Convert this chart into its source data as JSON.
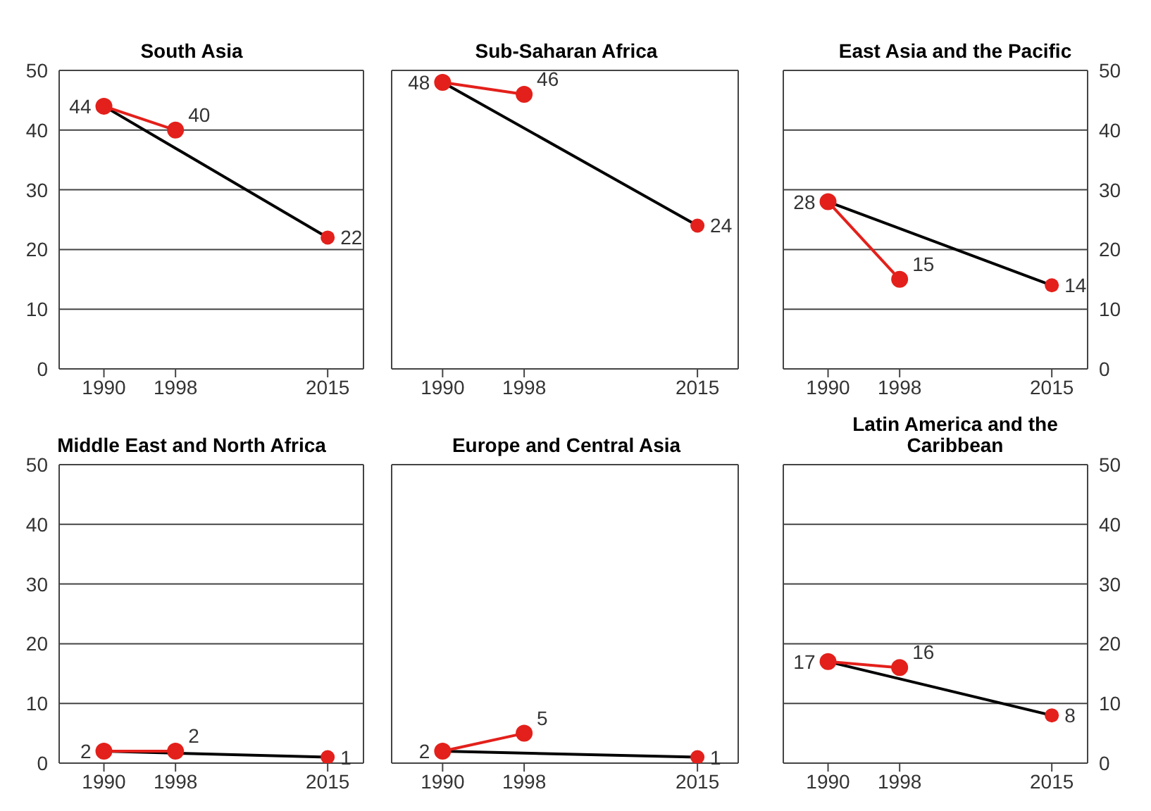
{
  "chart_data": [
    {
      "type": "line",
      "title": "South Asia",
      "xlim": [
        1985,
        2019
      ],
      "xticks": [
        1990,
        1998,
        2015
      ],
      "ylim": [
        0,
        50
      ],
      "yticks": [
        0,
        10,
        20,
        30,
        40,
        50
      ],
      "grid": "y",
      "series": [
        {
          "type": "line",
          "color": "#000000",
          "marker": "none",
          "x": [
            1990,
            2015
          ],
          "values": [
            44,
            22
          ],
          "value_labels": [
            null,
            null
          ]
        },
        {
          "type": "line",
          "color": "#e3201b",
          "marker": "circle",
          "x": [
            1990,
            1998
          ],
          "values": [
            44,
            40
          ],
          "value_labels": [
            "44",
            "40"
          ]
        },
        {
          "type": "scatter",
          "color": "#e3201b",
          "marker": "circle",
          "x": [
            2015
          ],
          "values": [
            22
          ],
          "value_labels": [
            "22"
          ]
        }
      ]
    },
    {
      "type": "line",
      "title": "Sub-Saharan Africa",
      "xlim": [
        1985,
        2019
      ],
      "xticks": [
        1990,
        1998,
        2015
      ],
      "ylim": [
        0,
        50
      ],
      "yticks": [
        0,
        10,
        20,
        30,
        40,
        50
      ],
      "grid": "y",
      "tick_labels": "x",
      "series": [
        {
          "type": "line",
          "color": "#000000",
          "marker": "none",
          "x": [
            1990,
            2015
          ],
          "values": [
            48,
            24
          ],
          "value_labels": [
            null,
            null
          ]
        },
        {
          "type": "line",
          "color": "#e3201b",
          "marker": "circle",
          "x": [
            1990,
            1998
          ],
          "values": [
            48,
            46
          ],
          "value_labels": [
            "48",
            "46"
          ]
        },
        {
          "type": "scatter",
          "color": "#e3201b",
          "marker": "circle",
          "x": [
            2015
          ],
          "values": [
            24
          ],
          "value_labels": [
            "24"
          ]
        }
      ]
    },
    {
      "type": "line",
      "title": "East Asia and the Pacific",
      "xlim": [
        1985,
        2019
      ],
      "xticks": [
        1990,
        1998,
        2015
      ],
      "ylim": [
        0,
        50
      ],
      "yticks": [
        0,
        10,
        20,
        30,
        40,
        50
      ],
      "grid": "y",
      "series": [
        {
          "type": "line",
          "color": "#000000",
          "marker": "none",
          "x": [
            1990,
            2015
          ],
          "values": [
            28,
            14
          ],
          "value_labels": [
            null,
            null
          ]
        },
        {
          "type": "line",
          "color": "#e3201b",
          "marker": "circle",
          "x": [
            1990,
            1998
          ],
          "values": [
            28,
            15
          ],
          "value_labels": [
            "28",
            "15"
          ]
        },
        {
          "type": "scatter",
          "color": "#e3201b",
          "marker": "circle",
          "x": [
            2015
          ],
          "values": [
            14
          ],
          "value_labels": [
            "14"
          ]
        }
      ]
    },
    {
      "type": "line",
      "title": "Middle East and North Africa",
      "xlim": [
        1985,
        2019
      ],
      "xticks": [
        1990,
        1998,
        2015
      ],
      "ylim": [
        0,
        50
      ],
      "yticks": [
        0,
        10,
        20,
        30,
        40,
        50
      ],
      "grid": "y",
      "series": [
        {
          "type": "line",
          "color": "#000000",
          "marker": "none",
          "x": [
            1990,
            2015
          ],
          "values": [
            2,
            1
          ],
          "value_labels": [
            null,
            null
          ]
        },
        {
          "type": "line",
          "color": "#e3201b",
          "marker": "circle",
          "x": [
            1990,
            1998
          ],
          "values": [
            2,
            2
          ],
          "value_labels": [
            "2",
            "2"
          ]
        },
        {
          "type": "scatter",
          "color": "#e3201b",
          "marker": "circle",
          "x": [
            2015
          ],
          "values": [
            1
          ],
          "value_labels": [
            "1"
          ]
        }
      ]
    },
    {
      "type": "line",
      "title": "Europe and Central Asia",
      "xlim": [
        1985,
        2019
      ],
      "xticks": [
        1990,
        1998,
        2015
      ],
      "ylim": [
        0,
        50
      ],
      "yticks": [
        0,
        10,
        20,
        30,
        40,
        50
      ],
      "grid": "y",
      "tick_labels": "x",
      "series": [
        {
          "type": "line",
          "color": "#000000",
          "marker": "none",
          "x": [
            1990,
            2015
          ],
          "values": [
            2,
            1
          ],
          "value_labels": [
            null,
            null
          ]
        },
        {
          "type": "line",
          "color": "#e3201b",
          "marker": "circle",
          "x": [
            1990,
            1998
          ],
          "values": [
            2,
            5
          ],
          "value_labels": [
            "2",
            "5"
          ]
        },
        {
          "type": "scatter",
          "color": "#e3201b",
          "marker": "circle",
          "x": [
            2015
          ],
          "values": [
            1
          ],
          "value_labels": [
            "1"
          ]
        }
      ]
    },
    {
      "type": "line",
      "title": "Latin America and the Caribbean",
      "xlim": [
        1985,
        2019
      ],
      "xticks": [
        1990,
        1998,
        2015
      ],
      "ylim": [
        0,
        50
      ],
      "yticks": [
        0,
        10,
        20,
        30,
        40,
        50
      ],
      "grid": "y",
      "series": [
        {
          "type": "line",
          "color": "#000000",
          "marker": "none",
          "x": [
            1990,
            2015
          ],
          "values": [
            17,
            8
          ],
          "value_labels": [
            null,
            null
          ]
        },
        {
          "type": "line",
          "color": "#e3201b",
          "marker": "circle",
          "x": [
            1990,
            1998
          ],
          "values": [
            17,
            16
          ],
          "value_labels": [
            "17",
            "16"
          ]
        },
        {
          "type": "scatter",
          "color": "#e3201b",
          "marker": "circle",
          "x": [
            2015
          ],
          "values": [
            8
          ],
          "value_labels": [
            "8"
          ]
        }
      ]
    }
  ]
}
